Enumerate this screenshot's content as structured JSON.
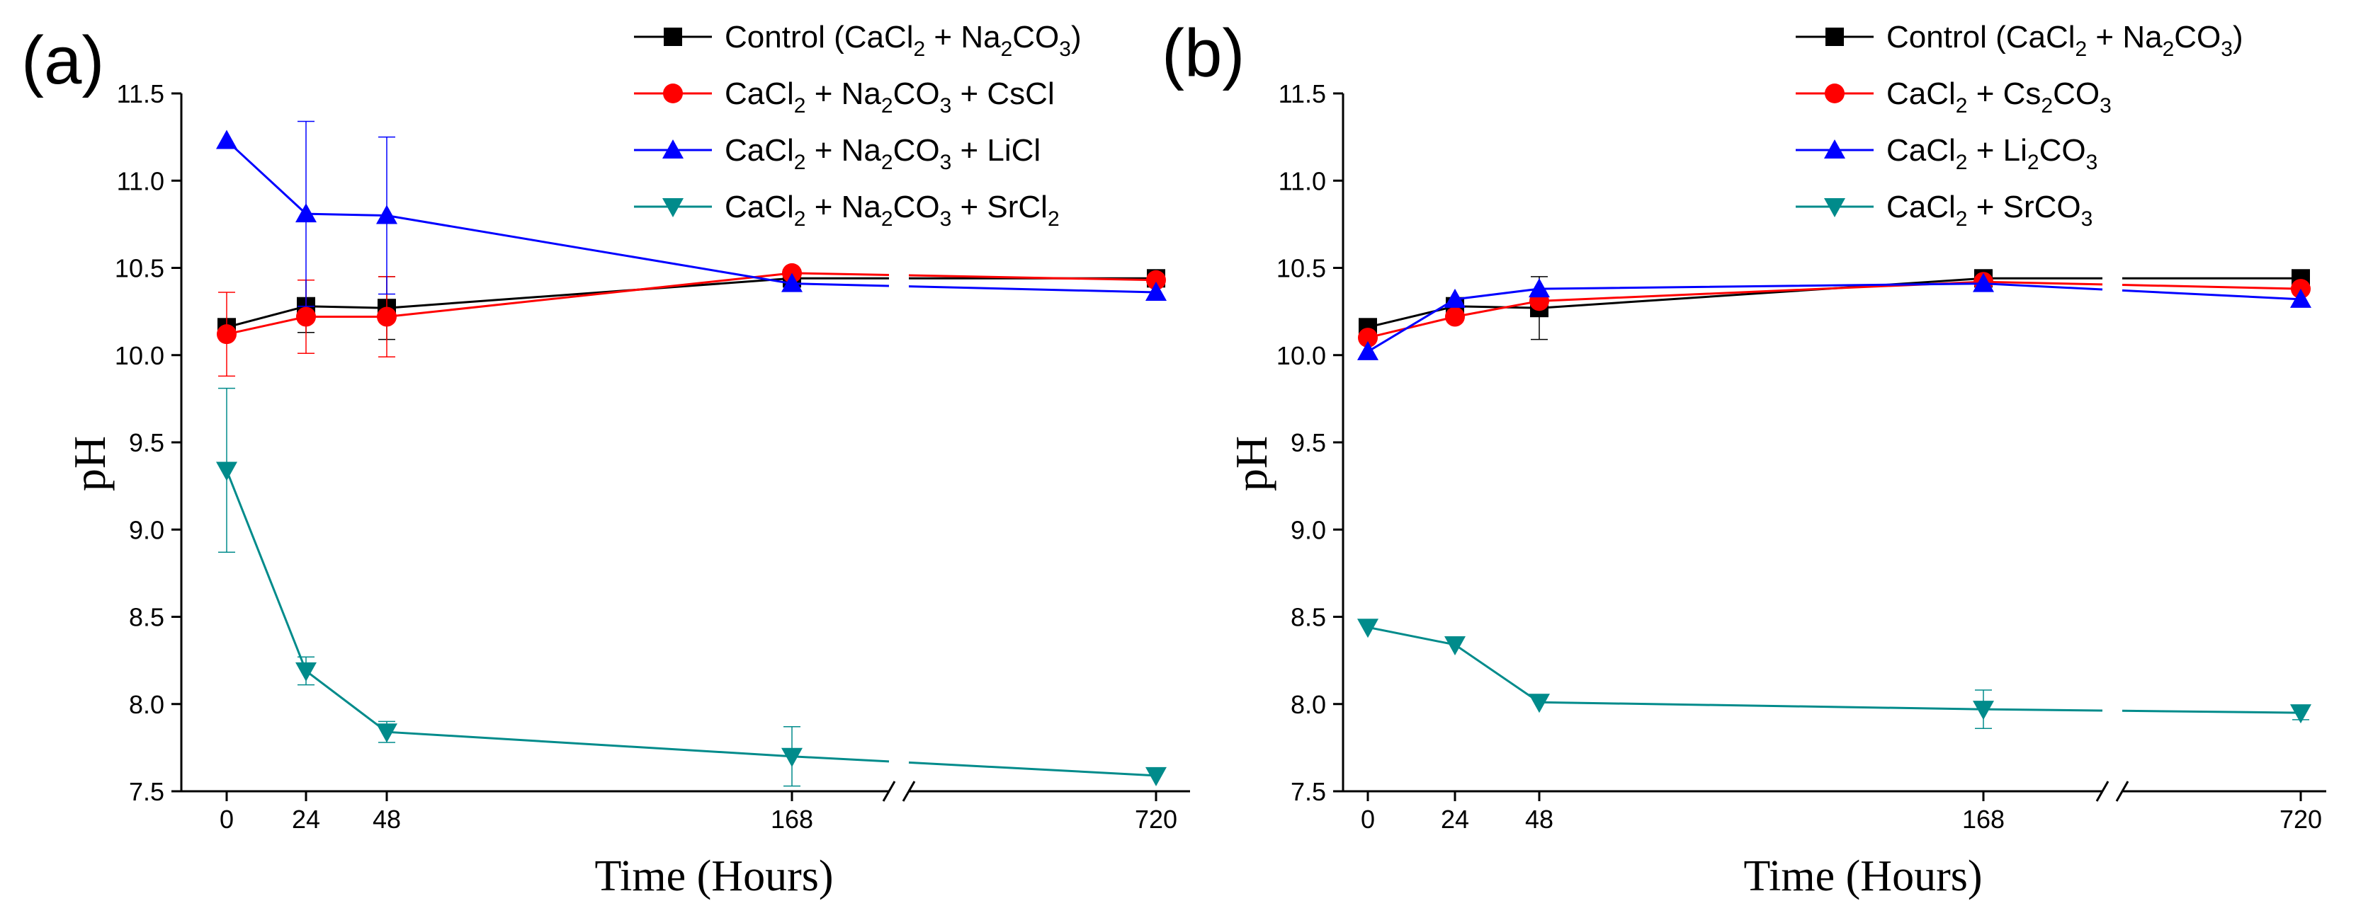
{
  "chart_data": [
    {
      "type": "line",
      "panel_label": "(a)",
      "xlabel": "Time (Hours)",
      "ylabel": "pH",
      "ylim": [
        7.5,
        11.5
      ],
      "yticks": [
        "7.5",
        "8.0",
        "8.5",
        "9.0",
        "9.5",
        "10.0",
        "10.5",
        "11.0",
        "11.5"
      ],
      "x": [
        0,
        24,
        48,
        168,
        720
      ],
      "xtick_labels": [
        "0",
        "24",
        "48",
        "168",
        "720"
      ],
      "axis_break": "between 168 and 720",
      "series": [
        {
          "name": "Control (CaCl2 + Na2CO3)",
          "legend": [
            "Control (CaCl",
            "2",
            " + Na",
            "2",
            "CO",
            "3",
            ")"
          ],
          "marker": "square",
          "color": "#000000",
          "values": [
            10.16,
            10.28,
            10.27,
            10.44,
            10.44
          ],
          "errors": [
            0,
            0.15,
            0.18,
            0,
            0
          ]
        },
        {
          "name": "CaCl2 + Na2CO3 + CsCl",
          "legend": [
            "CaCl",
            "2",
            " + Na",
            "2",
            "CO",
            "3",
            " + CsCl"
          ],
          "marker": "circle",
          "color": "#ff0000",
          "values": [
            10.12,
            10.22,
            10.22,
            10.47,
            10.43
          ],
          "errors": [
            0.24,
            0.21,
            0.23,
            0,
            0
          ]
        },
        {
          "name": "CaCl2 + Na2CO3 + LiCl",
          "legend": [
            "CaCl",
            "2",
            " + Na",
            "2",
            "CO",
            "3",
            " + LiCl"
          ],
          "marker": "triangle-up",
          "color": "#0000ff",
          "values": [
            11.23,
            10.81,
            10.8,
            10.41,
            10.36
          ],
          "errors": [
            0,
            0.53,
            0.45,
            0,
            0
          ]
        },
        {
          "name": "CaCl2 + Na2CO3 + SrCl2",
          "legend": [
            "CaCl",
            "2",
            " + Na",
            "2",
            "CO",
            "3",
            " + SrCl",
            "2",
            ""
          ],
          "marker": "triangle-down",
          "color": "#008b8b",
          "values": [
            9.34,
            8.19,
            7.84,
            7.7,
            7.59
          ],
          "errors": [
            0.47,
            0.08,
            0.06,
            0.17,
            0
          ]
        }
      ]
    },
    {
      "type": "line",
      "panel_label": "(b)",
      "xlabel": "Time (Hours)",
      "ylabel": "pH",
      "ylim": [
        7.5,
        11.5
      ],
      "yticks": [
        "7.5",
        "8.0",
        "8.5",
        "9.0",
        "9.5",
        "10.0",
        "10.5",
        "11.0",
        "11.5"
      ],
      "x": [
        0,
        24,
        48,
        168,
        720
      ],
      "xtick_labels": [
        "0",
        "24",
        "48",
        "168",
        "720"
      ],
      "axis_break": "between 168 and 720",
      "series": [
        {
          "name": "Control (CaCl2 + Na2CO3)",
          "legend": [
            "Control (CaCl",
            "2",
            " + Na",
            "2",
            "CO",
            "3",
            ")"
          ],
          "marker": "square",
          "color": "#000000",
          "values": [
            10.16,
            10.28,
            10.27,
            10.44,
            10.44
          ],
          "errors": [
            0,
            0,
            0.18,
            0,
            0
          ]
        },
        {
          "name": "CaCl2 + Cs2CO3",
          "legend": [
            "CaCl",
            "2",
            " + Cs",
            "2",
            "CO",
            "3",
            ""
          ],
          "marker": "circle",
          "color": "#ff0000",
          "values": [
            10.1,
            10.22,
            10.31,
            10.42,
            10.38
          ],
          "errors": [
            0,
            0,
            0,
            0,
            0
          ]
        },
        {
          "name": "CaCl2 + Li2CO3",
          "legend": [
            "CaCl",
            "2",
            " + Li",
            "2",
            "CO",
            "3",
            ""
          ],
          "marker": "triangle-up",
          "color": "#0000ff",
          "values": [
            10.02,
            10.32,
            10.38,
            10.41,
            10.32
          ],
          "errors": [
            0,
            0,
            0,
            0,
            0
          ]
        },
        {
          "name": "CaCl2 + SrCO3",
          "legend": [
            "CaCl",
            "2",
            " + SrCO",
            "3",
            ""
          ],
          "marker": "triangle-down",
          "color": "#008b8b",
          "values": [
            8.44,
            8.34,
            8.01,
            7.97,
            7.95
          ],
          "errors": [
            0,
            0,
            0,
            0.11,
            0.04
          ]
        }
      ]
    }
  ]
}
